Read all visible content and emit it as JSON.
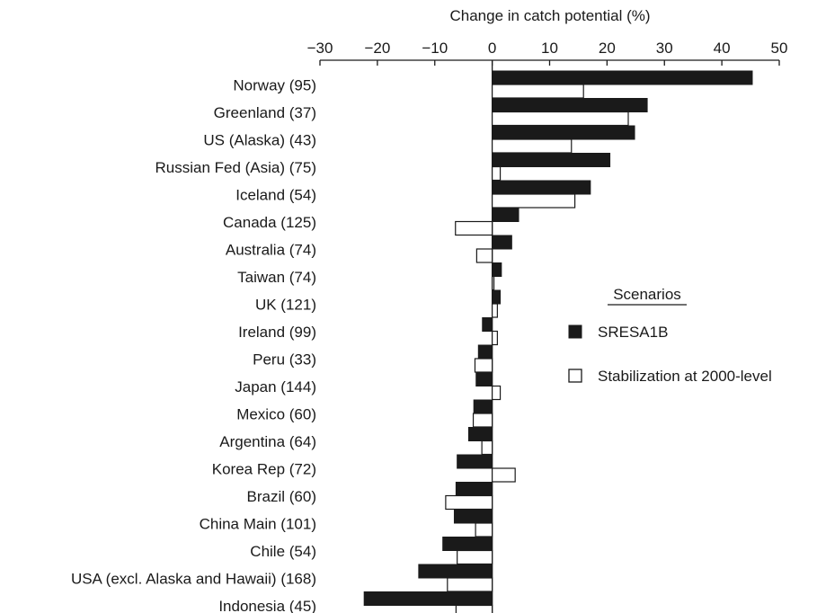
{
  "chart_data": {
    "type": "bar",
    "orientation": "horizontal",
    "xlabel": "Change in catch potential (%)",
    "xlim": [
      -30,
      50
    ],
    "xticks": [
      -30,
      -20,
      -10,
      0,
      10,
      20,
      30,
      40,
      50
    ],
    "xtick_labels": [
      "−30",
      "−20",
      "−10",
      "0",
      "10",
      "20",
      "30",
      "40",
      "50"
    ],
    "xaxis_position": "top",
    "grid": false,
    "categories": [
      "Norway (95)",
      "Greenland (37)",
      "US (Alaska) (43)",
      "Russian Fed (Asia) (75)",
      "Iceland (54)",
      "Canada (125)",
      "Australia (74)",
      "Taiwan (74)",
      "UK (121)",
      "Ireland (99)",
      "Peru (33)",
      "Japan (144)",
      "Mexico (60)",
      "Argentina (64)",
      "Korea Rep (72)",
      "Brazil (60)",
      "China Main (101)",
      "Chile (54)",
      "USA (excl. Alaska and Hawaii) (168)",
      "Indonesia (45)"
    ],
    "series": [
      {
        "name": "SRESA1B",
        "color": "#1a1a1a",
        "values": [
          45.3,
          27.0,
          24.8,
          20.5,
          17.1,
          4.6,
          3.4,
          1.6,
          1.4,
          -1.7,
          -2.4,
          -2.8,
          -3.2,
          -4.1,
          -6.1,
          -6.3,
          -6.6,
          -8.6,
          -12.8,
          -22.3
        ]
      },
      {
        "name": "Stabilization at 2000-level",
        "color": "#ffffff",
        "values": [
          15.9,
          23.7,
          13.8,
          1.4,
          14.4,
          -6.4,
          -2.7,
          0.3,
          0.9,
          0.9,
          -3.0,
          1.4,
          -3.3,
          -1.8,
          4.0,
          -8.1,
          -2.9,
          -6.1,
          -7.8,
          -6.3
        ]
      }
    ],
    "legend": {
      "title": "Scenarios",
      "position": "right",
      "entries": [
        "SRESA1B",
        "Stabilization at 2000-level"
      ]
    }
  }
}
